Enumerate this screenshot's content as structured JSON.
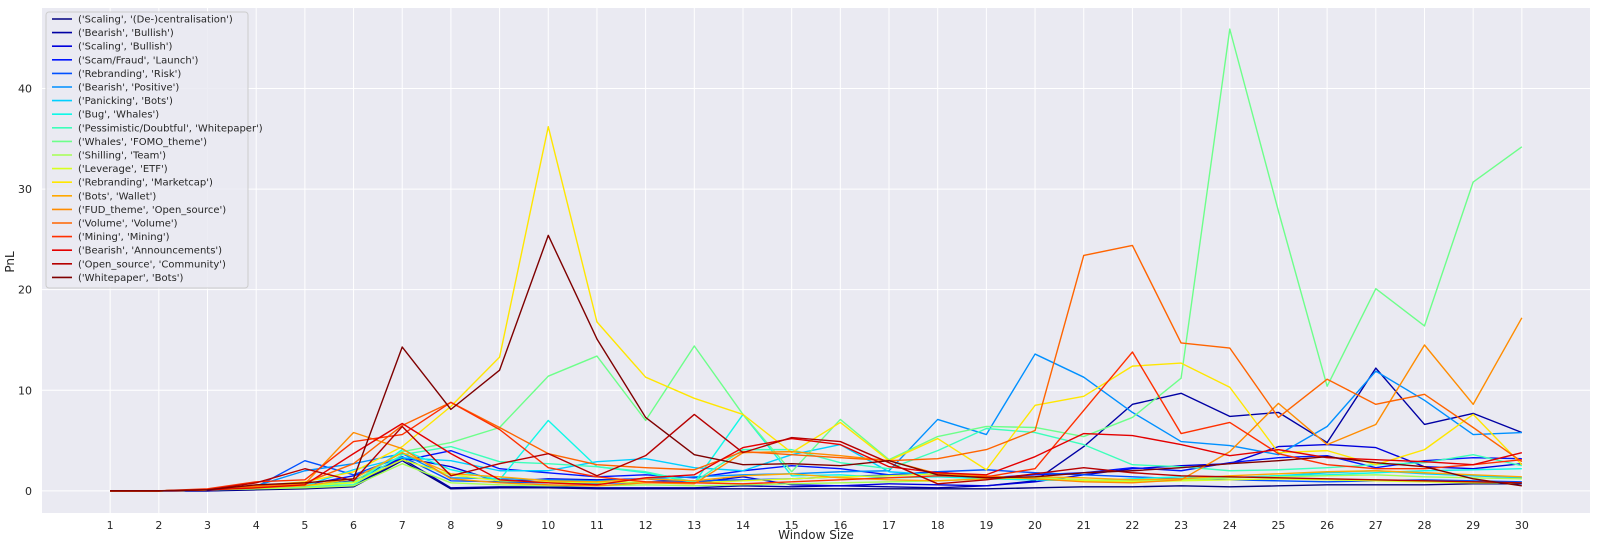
{
  "chart_data": {
    "type": "line",
    "title": "",
    "xlabel": "Window Size",
    "ylabel": "PnL",
    "x": [
      1,
      2,
      3,
      4,
      5,
      6,
      7,
      8,
      9,
      10,
      11,
      12,
      13,
      14,
      15,
      16,
      17,
      18,
      19,
      20,
      21,
      22,
      23,
      24,
      25,
      26,
      27,
      28,
      29,
      30
    ],
    "xlim": [
      -0.4,
      31.4
    ],
    "ylim": [
      -2.2,
      48
    ],
    "yticks": [
      0,
      10,
      20,
      30,
      40
    ],
    "grid": true,
    "background": "#eaeaf2",
    "legend_position": "top-left",
    "series": [
      {
        "name": "('Scaling', '(De-)centralisation')",
        "color": "#00007f",
        "values": [
          0,
          0,
          0,
          0.1,
          0.2,
          0.4,
          3.0,
          0.2,
          0.3,
          0.3,
          0.2,
          0.2,
          0.2,
          0.2,
          0.2,
          0.2,
          0.2,
          0.2,
          0.2,
          0.3,
          0.4,
          0.4,
          0.5,
          0.4,
          0.5,
          0.6,
          0.6,
          0.6,
          0.7,
          0.7
        ]
      },
      {
        "name": "('Bearish', 'Bullish')",
        "color": "#0000a4",
        "values": [
          0,
          0,
          0,
          0.2,
          0.3,
          0.5,
          3.2,
          0.3,
          0.4,
          0.4,
          0.3,
          0.3,
          0.3,
          0.5,
          0.4,
          0.5,
          0.4,
          0.3,
          0.5,
          1.0,
          4.4,
          8.6,
          9.7,
          7.4,
          7.8,
          4.8,
          12.2,
          6.6,
          7.7,
          5.8
        ]
      },
      {
        "name": "('Scaling', 'Bullish')",
        "color": "#0000dd",
        "values": [
          0,
          0,
          0.1,
          0.3,
          0.5,
          1.0,
          3.3,
          2.4,
          0.9,
          1.2,
          1.1,
          1.2,
          0.8,
          1.4,
          0.6,
          0.5,
          0.7,
          0.6,
          0.5,
          0.9,
          1.6,
          2.2,
          2.5,
          2.7,
          4.4,
          4.6,
          4.3,
          2.4,
          2.2,
          2.7
        ]
      },
      {
        "name": "('Scam/Fraud', 'Launch')",
        "color": "#0014ff",
        "values": [
          0,
          0,
          0.1,
          0.3,
          0.6,
          1.5,
          3.0,
          4.0,
          2.2,
          1.8,
          1.4,
          1.6,
          1.3,
          2.0,
          2.5,
          2.2,
          1.6,
          1.9,
          1.3,
          1.6,
          1.8,
          2.3,
          2.0,
          2.8,
          3.3,
          3.5,
          2.3,
          3.0,
          3.3,
          3.2
        ]
      },
      {
        "name": "('Rebranding', 'Risk')",
        "color": "#0050ff",
        "values": [
          0,
          0,
          0.1,
          0.4,
          3.0,
          1.6,
          3.4,
          1.0,
          0.9,
          0.8,
          0.7,
          0.9,
          1.0,
          1.1,
          1.2,
          1.4,
          1.6,
          1.9,
          2.1,
          1.8,
          1.6,
          1.4,
          1.2,
          1.1,
          1.0,
          0.9,
          1.0,
          1.1,
          1.0,
          0.9
        ]
      },
      {
        "name": "('Bearish', 'Positive')",
        "color": "#0090ff",
        "values": [
          0,
          0,
          0.1,
          0.5,
          2.0,
          2.7,
          3.7,
          1.3,
          1.2,
          1.1,
          1.0,
          1.2,
          1.4,
          1.6,
          1.7,
          1.9,
          2.0,
          7.1,
          5.6,
          13.6,
          11.3,
          7.8,
          4.9,
          4.5,
          3.6,
          6.4,
          11.9,
          9.0,
          5.6,
          5.8
        ]
      },
      {
        "name": "('Panicking', 'Bots')",
        "color": "#00d0ff",
        "values": [
          0,
          0,
          0.1,
          0.3,
          0.5,
          2.1,
          3.3,
          3.0,
          2.0,
          2.0,
          2.9,
          3.2,
          2.3,
          2.0,
          3.6,
          4.6,
          1.9,
          1.6,
          1.2,
          1.1,
          1.0,
          1.0,
          1.1,
          1.3,
          1.5,
          1.8,
          2.0,
          1.7,
          1.5,
          1.3
        ]
      },
      {
        "name": "('Bug', 'Whales')",
        "color": "#0ff8e7",
        "values": [
          0,
          0,
          0.1,
          0.4,
          0.5,
          0.6,
          4.1,
          2.1,
          1.1,
          7.0,
          2.4,
          1.8,
          0.8,
          7.6,
          1.5,
          1.6,
          1.3,
          1.4,
          1.2,
          1.1,
          1.0,
          1.2,
          1.4,
          1.3,
          1.5,
          1.6,
          1.8,
          2.0,
          2.1,
          2.2
        ]
      },
      {
        "name": "('Pessimistic/Doubtful', 'Whitepaper')",
        "color": "#3dffba",
        "values": [
          0,
          0,
          0.1,
          0.3,
          0.4,
          0.6,
          3.6,
          4.4,
          2.9,
          2.7,
          2.4,
          1.9,
          0.9,
          4.1,
          4.1,
          2.8,
          2.2,
          4.0,
          6.2,
          5.8,
          4.6,
          2.6,
          2.4,
          2.0,
          2.1,
          2.3,
          2.6,
          2.8,
          3.6,
          2.5
        ]
      },
      {
        "name": "('Whales', 'FOMO_theme')",
        "color": "#6dff8a",
        "values": [
          0,
          0,
          0.1,
          0.3,
          0.6,
          0.9,
          3.9,
          4.8,
          6.3,
          11.4,
          13.4,
          7.0,
          14.4,
          7.6,
          1.9,
          7.1,
          3.1,
          5.4,
          6.4,
          6.3,
          5.4,
          7.3,
          11.2,
          45.9,
          27.8,
          10.4,
          20.1,
          16.4,
          30.7,
          34.2
        ]
      },
      {
        "name": "('Shilling', 'Team')",
        "color": "#a4ff53",
        "values": [
          0,
          0,
          0.1,
          0.2,
          0.3,
          0.5,
          2.7,
          0.8,
          0.6,
          0.5,
          0.5,
          0.6,
          0.5,
          0.6,
          0.7,
          0.8,
          0.9,
          1.0,
          1.2,
          1.3,
          1.1,
          1.0,
          1.1,
          1.3,
          1.4,
          1.5,
          1.6,
          1.4,
          1.3,
          1.2
        ]
      },
      {
        "name": "('Leverage', 'ETF')",
        "color": "#d7ff1f",
        "values": [
          0,
          0,
          0.1,
          0.3,
          0.5,
          0.8,
          3.1,
          1.6,
          1.0,
          0.9,
          0.8,
          0.9,
          0.8,
          1.0,
          1.2,
          1.4,
          1.5,
          1.7,
          1.4,
          1.2,
          1.0,
          0.9,
          1.0,
          1.1,
          1.2,
          1.1,
          1.0,
          0.9,
          0.8,
          0.8
        ]
      },
      {
        "name": "('Rebranding', 'Marketcap')",
        "color": "#ffe600",
        "values": [
          0,
          0,
          0.1,
          0.5,
          0.9,
          1.9,
          4.4,
          8.4,
          13.3,
          36.2,
          16.8,
          11.3,
          9.2,
          7.6,
          3.8,
          6.8,
          3.0,
          5.2,
          2.1,
          8.5,
          9.4,
          12.4,
          12.7,
          10.3,
          3.8,
          4.0,
          2.6,
          4.1,
          7.6,
          2.6
        ]
      },
      {
        "name": "('Bots', 'Wallet')",
        "color": "#ffa800",
        "values": [
          0,
          0,
          0.1,
          0.3,
          0.5,
          1.2,
          3.8,
          1.7,
          1.4,
          1.0,
          0.9,
          1.2,
          1.0,
          1.5,
          1.7,
          1.3,
          1.1,
          1.0,
          1.2,
          1.4,
          1.3,
          1.1,
          1.2,
          1.5,
          1.7,
          1.9,
          2.0,
          1.8,
          1.6,
          1.4
        ]
      },
      {
        "name": "('FUD_theme', 'Open_source')",
        "color": "#ff8c00",
        "values": [
          0,
          0,
          0.1,
          0.4,
          0.7,
          5.8,
          4.2,
          1.2,
          0.8,
          0.6,
          0.5,
          0.8,
          0.7,
          3.8,
          3.9,
          3.5,
          3.0,
          1.7,
          1.5,
          1.2,
          0.9,
          0.8,
          1.1,
          3.9,
          8.7,
          4.6,
          6.6,
          14.5,
          8.6,
          17.2
        ]
      },
      {
        "name": "('Volume', 'Volume')",
        "color": "#ff6400",
        "values": [
          0,
          0,
          0.1,
          0.5,
          0.8,
          2.7,
          6.5,
          8.8,
          6.3,
          3.7,
          2.6,
          2.3,
          2.1,
          3.9,
          3.6,
          3.3,
          3.0,
          3.2,
          4.1,
          6.0,
          23.4,
          24.4,
          14.7,
          14.2,
          7.3,
          11.1,
          8.6,
          9.6,
          6.3,
          2.9
        ]
      },
      {
        "name": "('Mining', 'Mining')",
        "color": "#ff3000",
        "values": [
          0,
          0,
          0.2,
          0.9,
          1.1,
          4.9,
          5.6,
          8.8,
          6.1,
          2.3,
          1.4,
          0.9,
          0.8,
          0.7,
          0.9,
          1.1,
          1.3,
          1.5,
          1.4,
          2.2,
          8.0,
          13.8,
          5.7,
          6.8,
          3.7,
          2.6,
          2.2,
          2.2,
          2.6,
          3.1
        ]
      },
      {
        "name": "('Bearish', 'Announcements')",
        "color": "#e40000",
        "values": [
          0,
          0,
          0.1,
          0.3,
          0.6,
          3.7,
          6.7,
          3.7,
          1.1,
          0.8,
          0.6,
          1.3,
          1.6,
          4.3,
          5.2,
          4.6,
          2.4,
          1.8,
          1.6,
          3.4,
          5.7,
          5.5,
          4.6,
          3.5,
          4.1,
          3.3,
          3.1,
          2.9,
          2.6,
          3.8
        ]
      },
      {
        "name": "('Open_source', 'Community')",
        "color": "#b60000",
        "values": [
          0,
          0,
          0.1,
          0.8,
          2.2,
          1.0,
          6.4,
          1.5,
          2.7,
          3.7,
          1.5,
          3.5,
          7.6,
          3.8,
          5.3,
          4.9,
          2.8,
          0.7,
          1.1,
          1.7,
          2.3,
          1.8,
          1.5,
          1.4,
          1.3,
          1.2,
          1.1,
          1.0,
          0.9,
          0.8
        ]
      },
      {
        "name": "('Whitepaper', 'Bots')",
        "color": "#7f0000",
        "values": [
          0,
          0,
          0.1,
          0.6,
          0.8,
          1.2,
          14.3,
          8.1,
          12.0,
          25.4,
          15.1,
          7.3,
          3.6,
          2.6,
          2.7,
          2.5,
          3.0,
          1.6,
          1.3,
          1.4,
          1.8,
          2.0,
          2.3,
          2.7,
          3.0,
          3.4,
          2.8,
          2.4,
          1.2,
          0.5
        ]
      }
    ]
  }
}
